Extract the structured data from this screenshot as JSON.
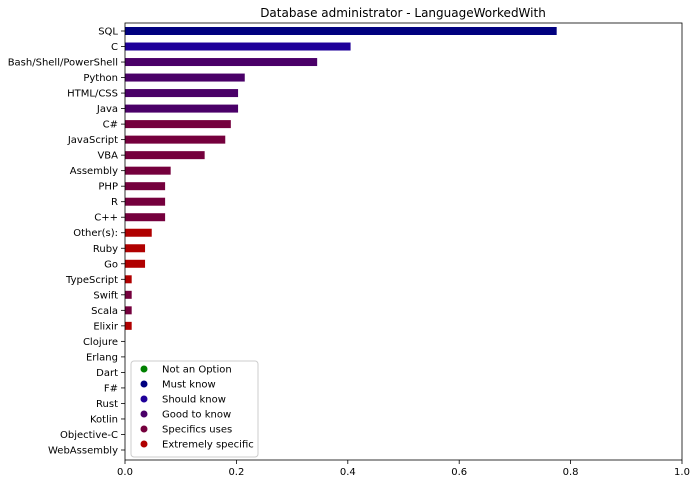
{
  "chart_data": {
    "type": "bar",
    "orientation": "horizontal",
    "title": "Database administrator - LanguageWorkedWith",
    "xlabel": "",
    "ylabel": "",
    "xlim": [
      0,
      1.0
    ],
    "xticks": [
      "0.0",
      "0.2",
      "0.4",
      "0.6",
      "0.8",
      "1.0"
    ],
    "grid": false,
    "legend_position": "bottom-left",
    "categories": [
      "SQL",
      "C",
      "Bash/Shell/PowerShell",
      "Python",
      "HTML/CSS",
      "Java",
      "C#",
      "JavaScript",
      "VBA",
      "Assembly",
      "PHP",
      "R",
      "C++",
      "Other(s):",
      "Ruby",
      "Go",
      "TypeScript",
      "Swift",
      "Scala",
      "Elixir",
      "Clojure",
      "Erlang",
      "Dart",
      "F#",
      "Rust",
      "Kotlin",
      "Objective-C",
      "WebAssembly"
    ],
    "values": [
      0.775,
      0.405,
      0.345,
      0.215,
      0.203,
      0.203,
      0.19,
      0.18,
      0.143,
      0.082,
      0.072,
      0.072,
      0.072,
      0.048,
      0.036,
      0.036,
      0.012,
      0.012,
      0.012,
      0.012,
      0.0,
      0.0,
      0.0,
      0.0,
      0.0,
      0.0,
      0.0,
      0.0
    ],
    "bar_groups": [
      0,
      1,
      2,
      3,
      3,
      3,
      4,
      4,
      4,
      4,
      4,
      4,
      4,
      5,
      5,
      5,
      5,
      4,
      4,
      5,
      5,
      5,
      5,
      5,
      5,
      5,
      5,
      5
    ],
    "legend": [
      {
        "name": "Not an Option",
        "color": "#008000"
      },
      {
        "name": "Must know",
        "color": "#00007f"
      },
      {
        "name": "Should know",
        "color": "#1f0099"
      },
      {
        "name": "Good to know",
        "color": "#4a0068"
      },
      {
        "name": "Specifics uses",
        "color": "#75003d"
      },
      {
        "name": "Extremely specific",
        "color": "#b00000"
      }
    ],
    "bar_colors": [
      "#00007f",
      "#1f0099",
      "#4a0068",
      "#4a0068",
      "#4a0068",
      "#4a0068",
      "#75003d",
      "#75003d",
      "#75003d",
      "#75003d",
      "#75003d",
      "#75003d",
      "#75003d",
      "#b00000",
      "#b00000",
      "#b00000",
      "#b00000",
      "#75003d",
      "#75003d",
      "#b00000",
      "#b00000",
      "#b00000",
      "#b00000",
      "#b00000",
      "#b00000",
      "#b00000",
      "#b00000",
      "#b00000"
    ]
  }
}
